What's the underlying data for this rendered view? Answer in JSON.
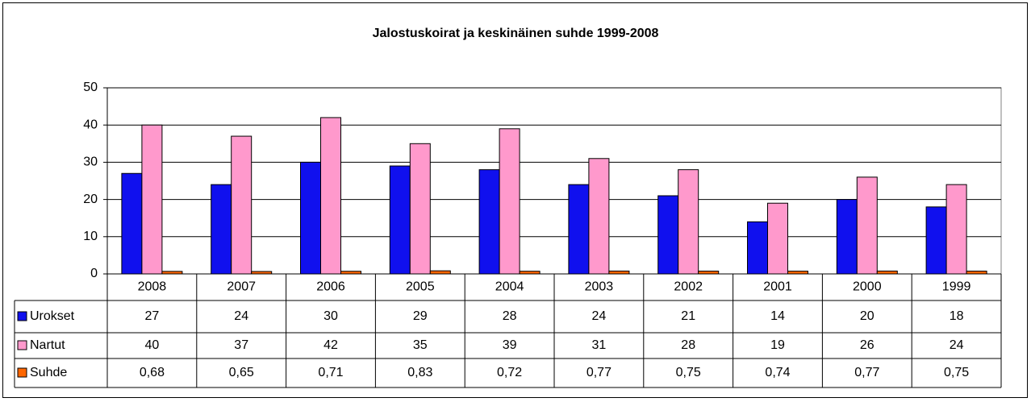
{
  "chart_data": {
    "type": "bar",
    "title": "Jalostuskoirat ja keskinäinen suhde 1999-2008",
    "categories": [
      "2008",
      "2007",
      "2006",
      "2005",
      "2004",
      "2003",
      "2002",
      "2001",
      "2000",
      "1999"
    ],
    "series": [
      {
        "name": "Urokset",
        "color": "#1010ee",
        "values": [
          27,
          24,
          30,
          29,
          28,
          24,
          21,
          14,
          20,
          18
        ]
      },
      {
        "name": "Nartut",
        "color": "#ff99cc",
        "values": [
          40,
          37,
          42,
          35,
          39,
          31,
          28,
          19,
          26,
          24
        ]
      },
      {
        "name": "Suhde",
        "color": "#ff6600",
        "values": [
          0.68,
          0.65,
          0.71,
          0.83,
          0.72,
          0.77,
          0.75,
          0.74,
          0.77,
          0.75
        ],
        "value_labels": [
          "0,68",
          "0,65",
          "0,71",
          "0,83",
          "0,72",
          "0,77",
          "0,75",
          "0,74",
          "0,77",
          "0,75"
        ]
      }
    ],
    "ylim": [
      0,
      50
    ],
    "yticks": [
      0,
      10,
      20,
      30,
      40,
      50
    ],
    "grid": true
  }
}
